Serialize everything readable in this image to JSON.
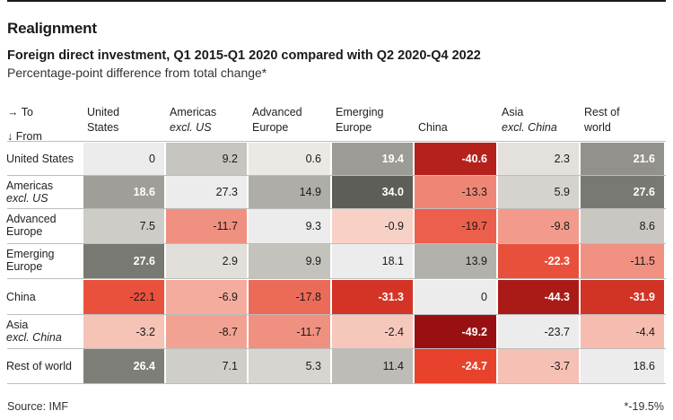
{
  "title": "Realignment",
  "subtitle": "Foreign direct investment, Q1 2015-Q1 2020 compared with Q2 2020-Q4 2022",
  "subtitle2": "Percentage-point difference from total change*",
  "axis": {
    "to_label": "→ To",
    "from_label": "↓ From"
  },
  "source": "Source: IMF",
  "footnote": "*-19.5%",
  "chart_data": {
    "type": "heatmap",
    "title": "Realignment",
    "columns": [
      {
        "line1": "United",
        "line2": "States",
        "line2_italic": false
      },
      {
        "line1": "Americas",
        "line2": "excl. US",
        "line2_italic": true
      },
      {
        "line1": "Advanced",
        "line2": "Europe",
        "line2_italic": false
      },
      {
        "line1": "Emerging",
        "line2": "Europe",
        "line2_italic": false
      },
      {
        "line1": "China",
        "line2": "",
        "line2_italic": false
      },
      {
        "line1": "Asia",
        "line2": "excl. China",
        "line2_italic": true
      },
      {
        "line1": "Rest of",
        "line2": "world",
        "line2_italic": false
      }
    ],
    "rows": [
      {
        "line1": "United States",
        "line2": "",
        "line2_italic": false
      },
      {
        "line1": "Americas",
        "line2": "excl. US",
        "line2_italic": true
      },
      {
        "line1": "Advanced",
        "line2": "Europe",
        "line2_italic": false
      },
      {
        "line1": "Emerging",
        "line2": "Europe",
        "line2_italic": false
      },
      {
        "line1": "China",
        "line2": "",
        "line2_italic": false
      },
      {
        "line1": "Asia",
        "line2": "excl. China",
        "line2_italic": true
      },
      {
        "line1": "Rest of world",
        "line2": "",
        "line2_italic": false
      }
    ],
    "values": [
      [
        0,
        9.2,
        0.6,
        19.4,
        -40.6,
        2.3,
        21.6
      ],
      [
        18.6,
        27.3,
        14.9,
        34.0,
        -13.3,
        5.9,
        27.6
      ],
      [
        7.5,
        -11.7,
        9.3,
        -0.9,
        -19.7,
        -9.8,
        8.6
      ],
      [
        27.6,
        2.9,
        9.9,
        18.1,
        13.9,
        -22.3,
        -11.5
      ],
      [
        -22.1,
        -6.9,
        -17.8,
        -31.3,
        0,
        -44.3,
        -31.9
      ],
      [
        -3.2,
        -8.7,
        -11.7,
        -2.4,
        -49.2,
        -23.7,
        -4.4
      ],
      [
        26.4,
        7.1,
        5.3,
        11.4,
        -24.7,
        -3.7,
        18.6
      ]
    ],
    "labels": [
      [
        "0",
        "9.2",
        "0.6",
        "19.4",
        "-40.6",
        "2.3",
        "21.6"
      ],
      [
        "18.6",
        "27.3",
        "14.9",
        "34.0",
        "-13.3",
        "5.9",
        "27.6"
      ],
      [
        "7.5",
        "-11.7",
        "9.3",
        "-0.9",
        "-19.7",
        "-9.8",
        "8.6"
      ],
      [
        "27.6",
        "2.9",
        "9.9",
        "18.1",
        "13.9",
        "-22.3",
        "-11.5"
      ],
      [
        "-22.1",
        "-6.9",
        "-17.8",
        "-31.3",
        "0",
        "-44.3",
        "-31.9"
      ],
      [
        "-3.2",
        "-8.7",
        "-11.7",
        "-2.4",
        "-49.2",
        "-23.7",
        "-4.4"
      ],
      [
        "26.4",
        "7.1",
        "5.3",
        "11.4",
        "-24.7",
        "-3.7",
        "18.6"
      ]
    ],
    "palette": {
      "diagonal": "#ececec",
      "pos_light": "#eeebe6",
      "pos_dark": "#5e5e58",
      "neg_light": "#f8d6cc",
      "neg_mid": "#e8422c",
      "neg_dark": "#9a1012",
      "text_dark": "#1a1a1a",
      "text_light": "#ffffff"
    }
  }
}
